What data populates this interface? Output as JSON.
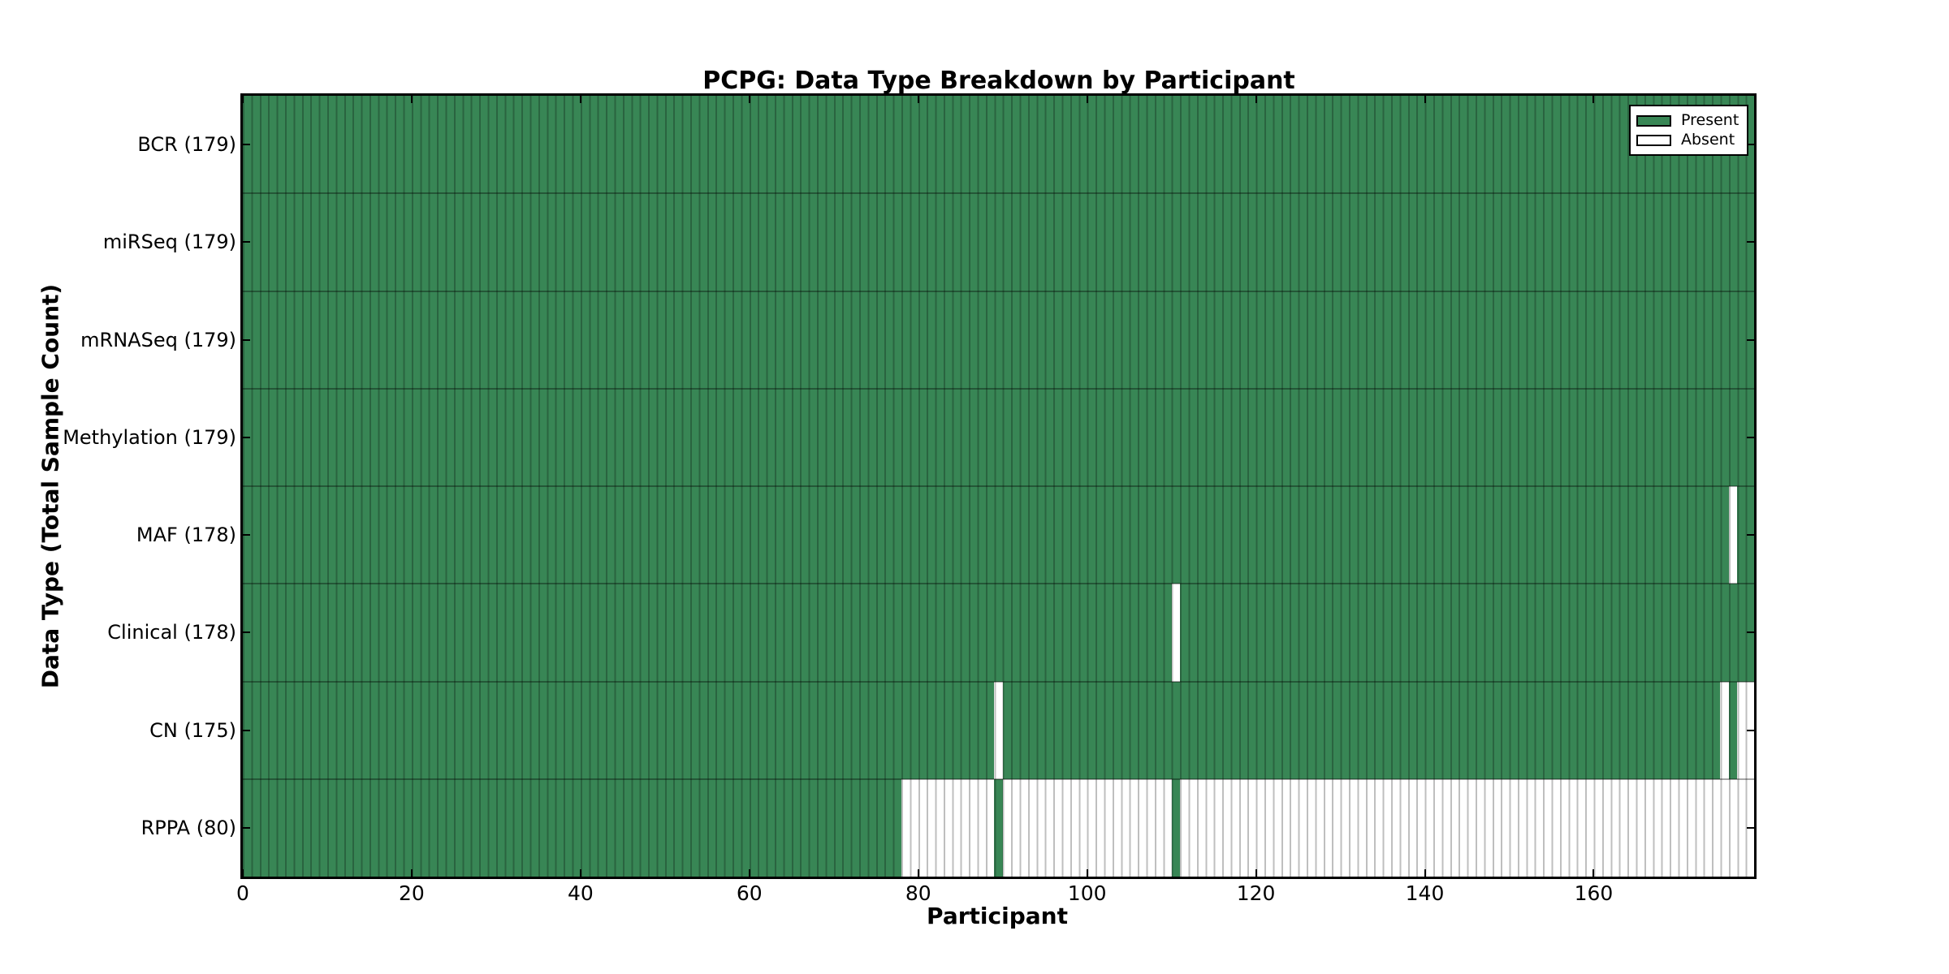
{
  "title": "PCPG: Data Type Breakdown by Participant",
  "axes": {
    "xlabel": "Participant",
    "ylabel": "Data Type (Total Sample Count)"
  },
  "legend": {
    "items": [
      {
        "label": "Present",
        "color": "#388655"
      },
      {
        "label": "Absent",
        "color": "#ffffff"
      }
    ]
  },
  "chart_data": {
    "type": "heatmap",
    "title": "PCPG: Data Type Breakdown by Participant",
    "xlabel": "Participant",
    "ylabel": "Data Type (Total Sample Count)",
    "x_ticks": [
      0,
      20,
      40,
      60,
      80,
      100,
      120,
      140,
      160
    ],
    "x_range": [
      0,
      179
    ],
    "n_participants": 179,
    "grid": false,
    "legend_position": "upper right",
    "legend_entries": [
      "Present",
      "Absent"
    ],
    "colors": {
      "present": "#388655",
      "absent": "#ffffff"
    },
    "rows": [
      {
        "label": "BCR (179)",
        "name": "BCR",
        "total_samples": 179,
        "runs": [
          [
            "present",
            0,
            179
          ]
        ]
      },
      {
        "label": "miRSeq (179)",
        "name": "miRSeq",
        "total_samples": 179,
        "runs": [
          [
            "present",
            0,
            179
          ]
        ]
      },
      {
        "label": "mRNASeq (179)",
        "name": "mRNASeq",
        "total_samples": 179,
        "runs": [
          [
            "present",
            0,
            179
          ]
        ]
      },
      {
        "label": "Methylation (179)",
        "name": "Methylation",
        "total_samples": 179,
        "runs": [
          [
            "present",
            0,
            179
          ]
        ]
      },
      {
        "label": "MAF (178)",
        "name": "MAF",
        "total_samples": 178,
        "runs": [
          [
            "present",
            0,
            176
          ],
          [
            "absent",
            176,
            177
          ],
          [
            "present",
            177,
            179
          ]
        ]
      },
      {
        "label": "Clinical (178)",
        "name": "Clinical",
        "total_samples": 178,
        "runs": [
          [
            "present",
            0,
            110
          ],
          [
            "absent",
            110,
            111
          ],
          [
            "present",
            111,
            179
          ]
        ]
      },
      {
        "label": "CN (175)",
        "name": "CN",
        "total_samples": 175,
        "runs": [
          [
            "present",
            0,
            89
          ],
          [
            "absent",
            89,
            90
          ],
          [
            "present",
            90,
            175
          ],
          [
            "absent",
            175,
            176
          ],
          [
            "present",
            176,
            177
          ],
          [
            "absent",
            177,
            179
          ]
        ]
      },
      {
        "label": "RPPA (80)",
        "name": "RPPA",
        "total_samples": 80,
        "runs": [
          [
            "present",
            0,
            78
          ],
          [
            "absent",
            78,
            89
          ],
          [
            "present",
            89,
            90
          ],
          [
            "absent",
            90,
            110
          ],
          [
            "present",
            110,
            111
          ],
          [
            "absent",
            111,
            179
          ]
        ]
      }
    ]
  }
}
